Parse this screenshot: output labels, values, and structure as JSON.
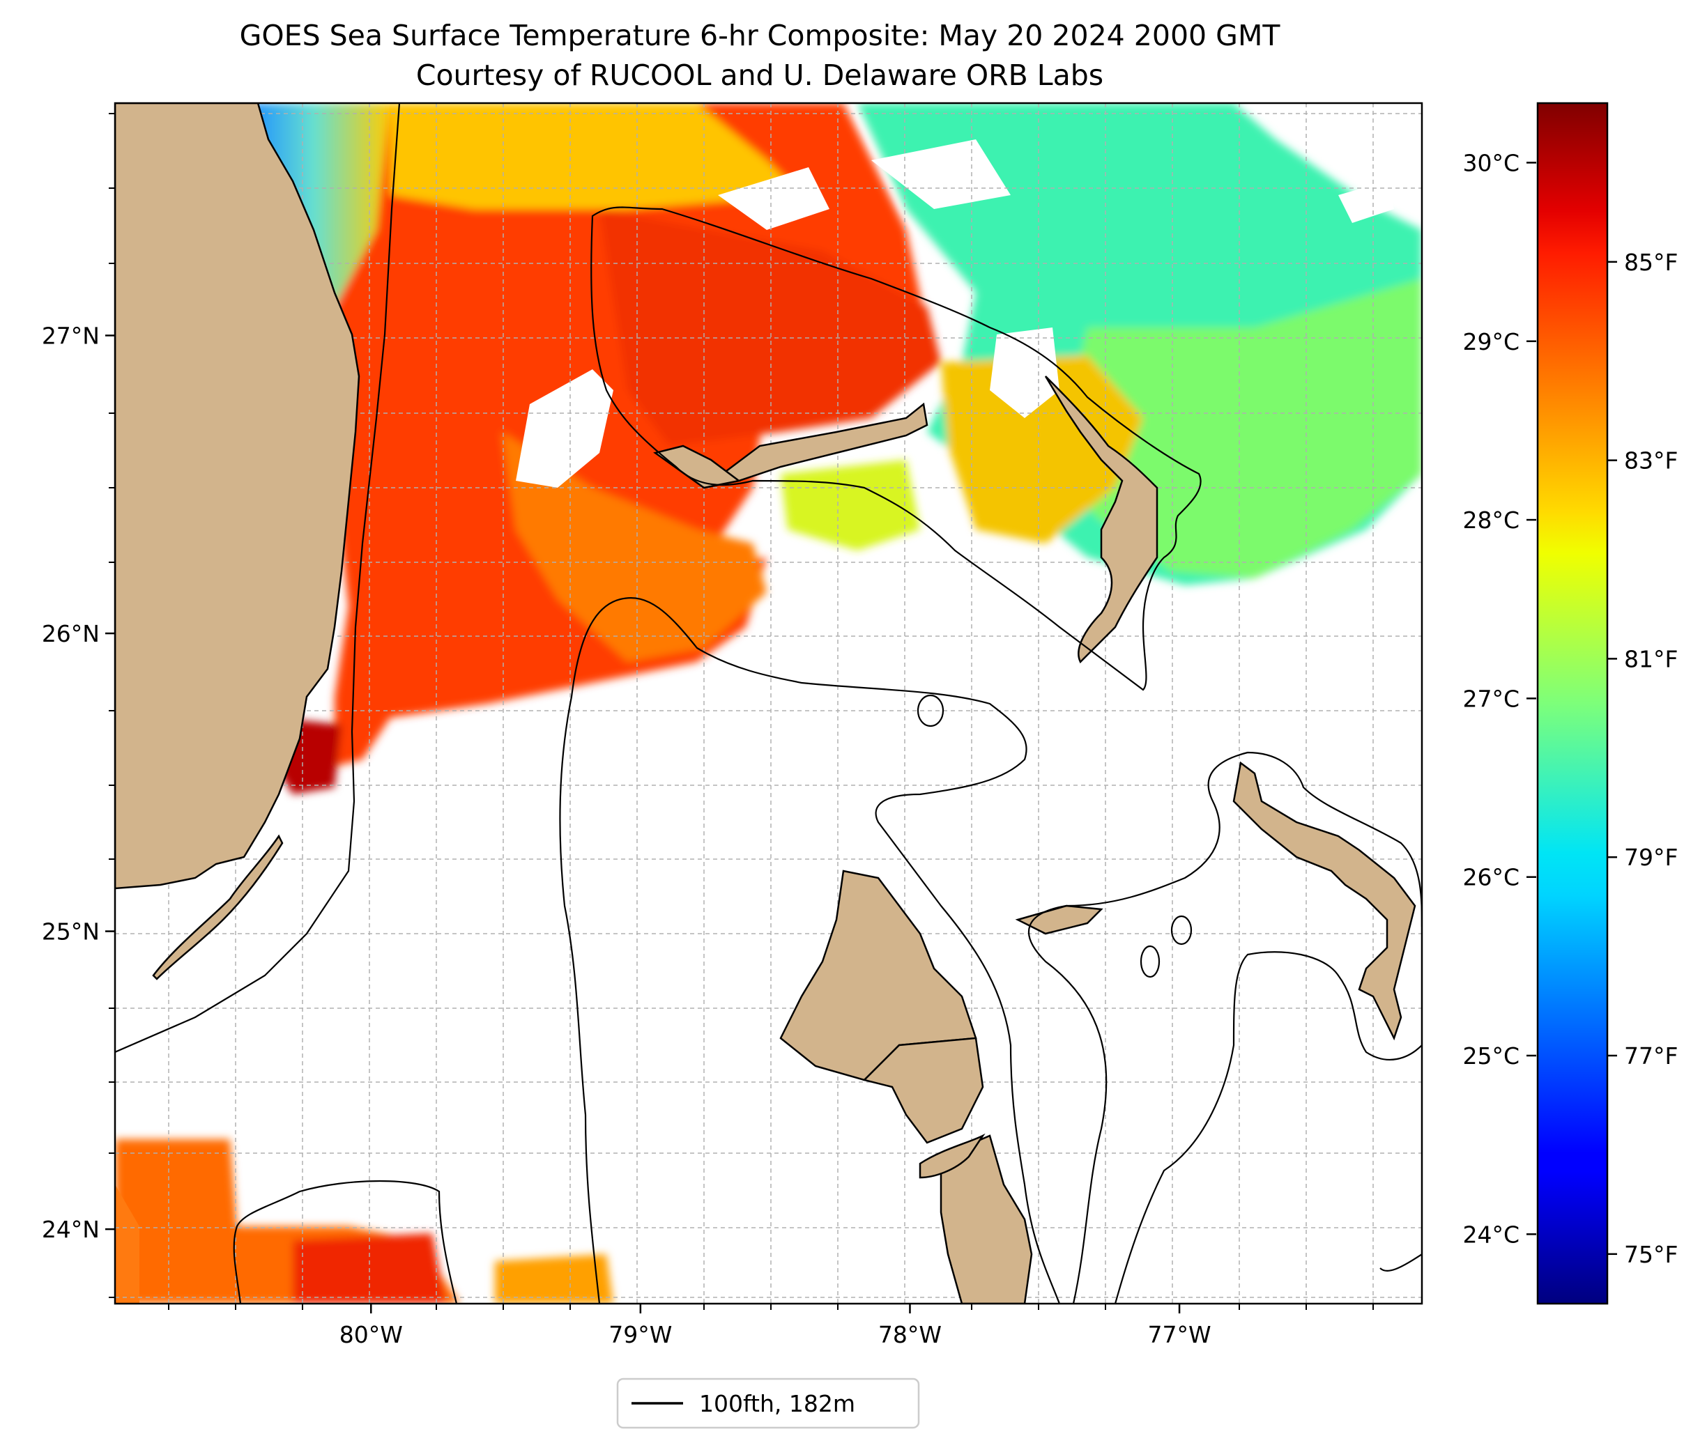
{
  "title": {
    "line1": "GOES Sea Surface Temperature 6-hr Composite: May 20 2024 2000 GMT",
    "line2": "Courtesy of RUCOOL and U. Delaware ORB Labs"
  },
  "map": {
    "lon_range": [
      -80.95,
      -76.1
    ],
    "lat_range": [
      23.75,
      27.78
    ],
    "lon_ticks": [
      {
        "value": -80,
        "label": "80°W"
      },
      {
        "value": -79,
        "label": "79°W"
      },
      {
        "value": -78,
        "label": "78°W"
      },
      {
        "value": -77,
        "label": "77°W"
      }
    ],
    "lat_ticks": [
      {
        "value": 27,
        "label": "27°N"
      },
      {
        "value": 26,
        "label": "26°N"
      },
      {
        "value": 25,
        "label": "25°N"
      },
      {
        "value": 24,
        "label": "24°N"
      }
    ],
    "colors": {
      "land": "#d2b48c",
      "ocean_nodata": "#ffffff",
      "grid": "#b0b0b0",
      "contour": "#000000"
    }
  },
  "colorbar": {
    "fahrenheit_ticks": [
      {
        "value": 85,
        "label": "85°F"
      },
      {
        "value": 83,
        "label": "83°F"
      },
      {
        "value": 81,
        "label": "81°F"
      },
      {
        "value": 79,
        "label": "79°F"
      },
      {
        "value": 77,
        "label": "77°F"
      },
      {
        "value": 75,
        "label": "75°F"
      }
    ],
    "celsius_ticks": [
      {
        "value": 30,
        "label": "30°C"
      },
      {
        "value": 29,
        "label": "29°C"
      },
      {
        "value": 28,
        "label": "28°C"
      },
      {
        "value": 27,
        "label": "27°C"
      },
      {
        "value": 26,
        "label": "26°C"
      },
      {
        "value": 25,
        "label": "25°C"
      },
      {
        "value": 24,
        "label": "24°C"
      }
    ],
    "range_f": [
      74.5,
      86.6
    ],
    "colormap": "jet"
  },
  "legend": {
    "label": "100fth, 182m",
    "line_color": "#000000"
  }
}
